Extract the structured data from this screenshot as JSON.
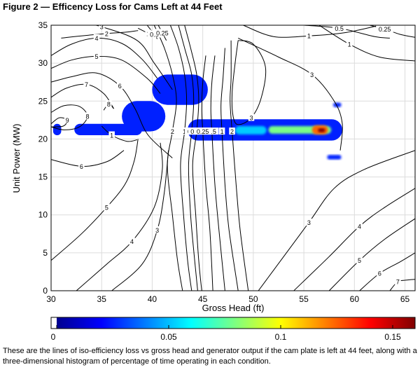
{
  "figure": {
    "title": "Figure 2 — Efficency Loss for Cams Left at 44 Feet",
    "caption": "These are the lines of iso-efficiency loss vs gross head and generator output if the cam plate is left at 44 feet, along with a three-dimensional histogram of percentage of time operating in each condition."
  },
  "chart_data": {
    "type": "heatmap",
    "xlabel": "Gross Head (ft)",
    "ylabel": "Unit Power (MW)",
    "xlim": [
      30,
      66
    ],
    "ylim": [
      0,
      35
    ],
    "xticks": [
      30,
      35,
      40,
      45,
      50,
      55,
      60,
      65
    ],
    "yticks": [
      0,
      5,
      10,
      15,
      20,
      25,
      30,
      35
    ],
    "grid": true,
    "colorbar": {
      "range": [
        0,
        0.16
      ],
      "ticks": [
        0,
        0.05,
        0.1,
        0.15
      ],
      "colormap": "jet",
      "zero_color": "#ffffff"
    },
    "histogram_regions": [
      {
        "x_range": [
          30.2,
          31.0
        ],
        "y_range": [
          20.5,
          22.0
        ],
        "value": 0.01
      },
      {
        "x_range": [
          32.3,
          39.0
        ],
        "y_range": [
          20.5,
          22.0
        ],
        "value": 0.01
      },
      {
        "x_range": [
          37.0,
          41.3
        ],
        "y_range": [
          21.0,
          25.0
        ],
        "value": 0.01
      },
      {
        "x_range": [
          40.0,
          45.5
        ],
        "y_range": [
          24.5,
          28.5
        ],
        "value": 0.01
      },
      {
        "x_range": [
          43.5,
          58.8
        ],
        "y_range": [
          19.8,
          22.6
        ],
        "value": 0.01
      },
      {
        "x_range": [
          48.2,
          51.3
        ],
        "y_range": [
          20.6,
          21.7
        ],
        "value": 0.04
      },
      {
        "x_range": [
          51.5,
          57.7
        ],
        "y_range": [
          20.7,
          21.7
        ],
        "value": 0.07
      },
      {
        "x_range": [
          55.8,
          57.4
        ],
        "y_range": [
          20.6,
          21.8
        ],
        "value": 0.12
      },
      {
        "x_range": [
          56.4,
          57.1
        ],
        "y_range": [
          20.9,
          21.4
        ],
        "value": 0.16
      },
      {
        "x_range": [
          57.9,
          58.7
        ],
        "y_range": [
          24.2,
          24.8
        ],
        "value": 0.01
      },
      {
        "x_range": [
          57.3,
          58.7
        ],
        "y_range": [
          17.3,
          17.9
        ],
        "value": 0.01
      }
    ],
    "contours": [
      {
        "label": "2",
        "points": [
          [
            31.0,
            33.3
          ],
          [
            33.0,
            33.6
          ],
          [
            35.5,
            33.9
          ],
          [
            37.5,
            34.1
          ],
          [
            38.6,
            34.3
          ]
        ]
      },
      {
        "label": "1",
        "points": [
          [
            38.6,
            34.6
          ],
          [
            39.6,
            33.9
          ],
          [
            40.0,
            33.4
          ]
        ]
      },
      {
        "label": "0.5",
        "points": [
          [
            39.5,
            35.0
          ],
          [
            40.2,
            33.8
          ],
          [
            40.5,
            33.2
          ]
        ]
      },
      {
        "label": "0.25",
        "points": [
          [
            40.6,
            35.0
          ],
          [
            41.0,
            34.0
          ],
          [
            41.4,
            33.0
          ]
        ]
      },
      {
        "label": "4",
        "points": [
          [
            30.0,
            31.0
          ],
          [
            32.0,
            32.5
          ],
          [
            34.5,
            33.3
          ],
          [
            37.0,
            32.6
          ],
          [
            39.0,
            30.5
          ],
          [
            40.5,
            28.0
          ]
        ]
      },
      {
        "label": "5",
        "points": [
          [
            30.0,
            29.3
          ],
          [
            32.0,
            30.4
          ],
          [
            34.5,
            30.9
          ],
          [
            37.0,
            30.4
          ],
          [
            39.5,
            28.0
          ],
          [
            40.8,
            26.0
          ]
        ]
      },
      {
        "label": "6",
        "points": [
          [
            30.0,
            27.5
          ],
          [
            32.0,
            28.2
          ],
          [
            34.5,
            28.7
          ],
          [
            36.8,
            27.0
          ],
          [
            38.3,
            24.0
          ],
          [
            39.6,
            20.5
          ],
          [
            42.0,
            17.5
          ]
        ]
      },
      {
        "label": "7",
        "points": [
          [
            30.0,
            25.5
          ],
          [
            31.5,
            26.7
          ],
          [
            33.5,
            27.2
          ],
          [
            35.2,
            26.0
          ],
          [
            36.2,
            24.0
          ]
        ]
      },
      {
        "label": "8",
        "points": [
          [
            30.0,
            23.5
          ],
          [
            31.3,
            24.4
          ],
          [
            32.8,
            24.3
          ],
          [
            33.6,
            23.0
          ],
          [
            32.8,
            21.6
          ],
          [
            31.3,
            21.2
          ],
          [
            30.0,
            21.6
          ]
        ]
      },
      {
        "label": "9",
        "points": [
          [
            30.0,
            22.0
          ],
          [
            30.8,
            22.8
          ],
          [
            31.6,
            22.5
          ],
          [
            31.2,
            21.7
          ],
          [
            30.0,
            21.6
          ]
        ]
      },
      {
        "label": "8",
        "points": [
          [
            35.2,
            23.8
          ],
          [
            35.7,
            24.6
          ],
          [
            36.2,
            24.0
          ]
        ]
      },
      {
        "label": "3",
        "points": [
          [
            30.0,
            36.0
          ],
          [
            32.5,
            35.5
          ],
          [
            35.0,
            34.8
          ],
          [
            38.5,
            33.0
          ],
          [
            40.2,
            30.0
          ],
          [
            42.0,
            26.5
          ]
        ]
      },
      {
        "label": "2",
        "points": [
          [
            40.2,
            35.0
          ],
          [
            41.2,
            32.0
          ],
          [
            42.0,
            28.5
          ],
          [
            42.4,
            25.0
          ],
          [
            42.0,
            21.0
          ],
          [
            41.5,
            16.5
          ],
          [
            42.0,
            10.0
          ],
          [
            42.5,
            4.0
          ],
          [
            43.0,
            0.0
          ]
        ]
      },
      {
        "label": "1",
        "points": [
          [
            41.8,
            35.0
          ],
          [
            42.6,
            32.0
          ],
          [
            43.2,
            28.5
          ],
          [
            43.4,
            25.0
          ],
          [
            43.2,
            21.0
          ],
          [
            42.8,
            16.5
          ],
          [
            43.1,
            10.0
          ],
          [
            43.5,
            4.0
          ],
          [
            43.9,
            0.0
          ]
        ]
      },
      {
        "label": "0.5",
        "points": [
          [
            42.6,
            35.0
          ],
          [
            43.2,
            32.0
          ],
          [
            43.9,
            28.5
          ],
          [
            44.1,
            25.0
          ],
          [
            43.9,
            21.0
          ],
          [
            43.6,
            16.5
          ],
          [
            43.8,
            10.0
          ],
          [
            44.2,
            4.0
          ],
          [
            44.5,
            0.0
          ]
        ]
      },
      {
        "label": "0.25",
        "points": [
          [
            43.2,
            35.0
          ],
          [
            43.8,
            32.0
          ],
          [
            44.4,
            28.5
          ],
          [
            44.6,
            25.0
          ],
          [
            44.4,
            21.0
          ],
          [
            44.0,
            16.5
          ],
          [
            44.3,
            10.0
          ],
          [
            44.6,
            4.0
          ],
          [
            44.9,
            0.0
          ]
        ]
      },
      {
        "label": "5",
        "points": [
          [
            30.0,
            4.0
          ],
          [
            33.0,
            7.5
          ],
          [
            35.5,
            11.0
          ],
          [
            37.3,
            14.0
          ],
          [
            38.2,
            17.0
          ],
          [
            38.6,
            20.0
          ]
        ]
      },
      {
        "label": "4",
        "points": [
          [
            32.5,
            0.0
          ],
          [
            35.5,
            3.5
          ],
          [
            38.0,
            6.5
          ],
          [
            40.2,
            11.0
          ],
          [
            41.0,
            16.0
          ],
          [
            40.8,
            19.5
          ]
        ]
      },
      {
        "label": "3",
        "points": [
          [
            36.0,
            0.0
          ],
          [
            39.0,
            3.5
          ],
          [
            40.5,
            8.0
          ],
          [
            41.2,
            13.0
          ],
          [
            41.6,
            18.5
          ]
        ]
      },
      {
        "label": "6",
        "points": [
          [
            30.0,
            17.3
          ],
          [
            33.0,
            16.4
          ],
          [
            35.5,
            17.0
          ],
          [
            37.2,
            18.5
          ]
        ]
      },
      {
        "label": "1",
        "points": [
          [
            35.0,
            21.7
          ],
          [
            36.0,
            20.5
          ],
          [
            37.5,
            19.7
          ],
          [
            38.5,
            19.9
          ]
        ]
      },
      {
        "label": "1",
        "points": [
          [
            47.2,
            32.0
          ],
          [
            47.0,
            28.0
          ],
          [
            46.8,
            24.5
          ],
          [
            46.9,
            21.0
          ],
          [
            47.2,
            14.0
          ],
          [
            47.6,
            8.0
          ],
          [
            48.5,
            0.0
          ]
        ]
      },
      {
        "label": "0.5",
        "points": [
          [
            46.2,
            31.0
          ],
          [
            45.9,
            27.5
          ],
          [
            45.8,
            24.0
          ],
          [
            45.9,
            21.0
          ],
          [
            46.2,
            14.0
          ],
          [
            46.6,
            8.0
          ],
          [
            47.2,
            0.0
          ]
        ]
      },
      {
        "label": "0.25",
        "points": [
          [
            45.3,
            31.0
          ],
          [
            45.0,
            27.5
          ],
          [
            44.9,
            24.0
          ],
          [
            45.0,
            21.0
          ],
          [
            45.3,
            14.0
          ],
          [
            45.7,
            8.0
          ],
          [
            46.0,
            0.0
          ]
        ]
      },
      {
        "label": "2",
        "points": [
          [
            47.8,
            33.0
          ],
          [
            47.8,
            28.0
          ],
          [
            47.7,
            25.0
          ],
          [
            47.9,
            21.0
          ],
          [
            48.3,
            14.0
          ],
          [
            48.7,
            8.0
          ],
          [
            49.5,
            0.0
          ]
        ]
      },
      {
        "label": "3",
        "points": [
          [
            48.5,
            33.0
          ],
          [
            50.0,
            32.5
          ],
          [
            51.2,
            29.5
          ],
          [
            50.8,
            25.5
          ],
          [
            49.8,
            22.8
          ],
          [
            48.5,
            21.9
          ],
          [
            48.0,
            23.0
          ],
          [
            47.9,
            26.0
          ],
          [
            48.2,
            30.0
          ],
          [
            48.5,
            33.0
          ]
        ]
      },
      {
        "label": "1",
        "points": [
          [
            49.0,
            35.0
          ],
          [
            52.0,
            33.5
          ],
          [
            55.5,
            33.6
          ],
          [
            59.0,
            34.0
          ],
          [
            62.5,
            35.0
          ]
        ]
      },
      {
        "label": "0.5",
        "points": [
          [
            55.0,
            35.0
          ],
          [
            58.5,
            34.6
          ],
          [
            62.0,
            33.5
          ],
          [
            63.5,
            33.3
          ]
        ]
      },
      {
        "label": "0.25",
        "points": [
          [
            61.5,
            35.0
          ],
          [
            63.0,
            34.5
          ],
          [
            64.5,
            33.8
          ],
          [
            66.0,
            33.4
          ]
        ]
      },
      {
        "label": "1",
        "points": [
          [
            56.5,
            35.0
          ],
          [
            59.5,
            32.5
          ],
          [
            62.5,
            30.8
          ],
          [
            66.0,
            30.3
          ]
        ]
      },
      {
        "label": "3",
        "points": [
          [
            48.5,
            33.3
          ],
          [
            52.5,
            30.8
          ],
          [
            55.8,
            28.5
          ],
          [
            58.0,
            25.0
          ],
          [
            58.8,
            22.0
          ],
          [
            58.6,
            18.5
          ]
        ]
      },
      {
        "label": "3",
        "points": [
          [
            50.5,
            0.0
          ],
          [
            53.0,
            4.5
          ],
          [
            55.5,
            9.0
          ],
          [
            58.0,
            13.5
          ],
          [
            61.0,
            16.0
          ],
          [
            66.0,
            18.5
          ]
        ]
      },
      {
        "label": "4",
        "points": [
          [
            54.0,
            0.0
          ],
          [
            57.5,
            4.5
          ],
          [
            60.5,
            8.5
          ],
          [
            63.0,
            11.0
          ],
          [
            66.0,
            13.5
          ]
        ]
      },
      {
        "label": "5",
        "points": [
          [
            57.5,
            0.0
          ],
          [
            60.5,
            4.0
          ],
          [
            63.0,
            6.8
          ],
          [
            66.0,
            9.5
          ]
        ]
      },
      {
        "label": "6",
        "points": [
          [
            60.5,
            0.0
          ],
          [
            62.5,
            2.3
          ],
          [
            64.5,
            3.8
          ],
          [
            66.0,
            5.0
          ]
        ]
      },
      {
        "label": "7",
        "points": [
          [
            63.5,
            0.0
          ],
          [
            64.3,
            1.2
          ],
          [
            65.2,
            1.4
          ],
          [
            66.0,
            1.5
          ]
        ]
      }
    ]
  }
}
